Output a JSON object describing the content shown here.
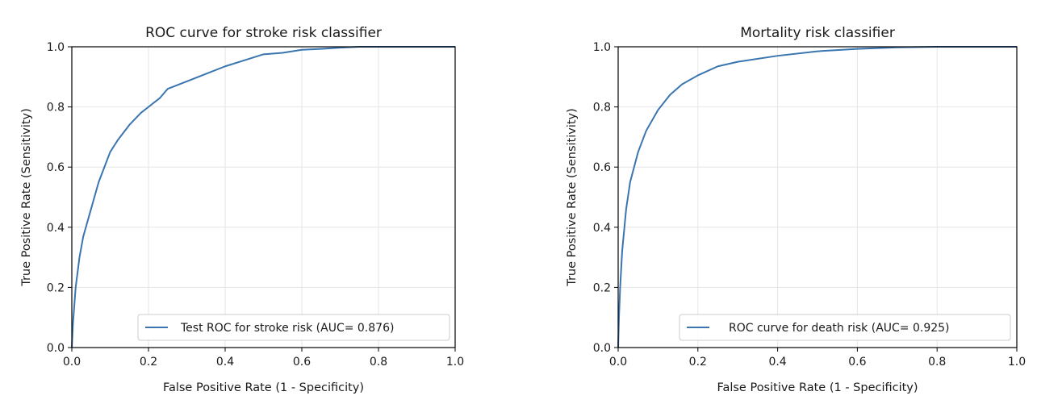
{
  "colors": {
    "line": "#3a75b0"
  },
  "chart_data": [
    {
      "type": "line",
      "title": "ROC curve for stroke risk classifier",
      "xlabel": "False Positive Rate (1 - Specificity)",
      "ylabel": "True Positive Rate (Sensitivity)",
      "xlim": [
        0.0,
        1.0
      ],
      "ylim": [
        0.0,
        1.0
      ],
      "xticks": [
        "0.0",
        "0.2",
        "0.4",
        "0.6",
        "0.8",
        "1.0"
      ],
      "yticks": [
        "0.0",
        "0.2",
        "0.4",
        "0.6",
        "0.8",
        "1.0"
      ],
      "grid": true,
      "legend_position": "lower-right",
      "series": [
        {
          "name": "Test ROC for stroke risk (AUC= 0.876)",
          "x": [
            0.0,
            0.003,
            0.01,
            0.02,
            0.03,
            0.05,
            0.07,
            0.1,
            0.12,
            0.15,
            0.18,
            0.2,
            0.23,
            0.25,
            0.3,
            0.35,
            0.4,
            0.45,
            0.5,
            0.55,
            0.6,
            0.65,
            0.7,
            0.75
          ],
          "y": [
            0.0,
            0.08,
            0.2,
            0.3,
            0.37,
            0.46,
            0.55,
            0.65,
            0.69,
            0.74,
            0.78,
            0.8,
            0.83,
            0.86,
            0.885,
            0.91,
            0.935,
            0.955,
            0.975,
            0.98,
            0.99,
            0.993,
            0.997,
            1.0
          ]
        }
      ]
    },
    {
      "type": "line",
      "title": "Mortality risk classifier",
      "xlabel": "False Positive Rate (1 - Specificity)",
      "ylabel": "True Positive Rate (Sensitivity)",
      "xlim": [
        0.0,
        1.0
      ],
      "ylim": [
        0.0,
        1.0
      ],
      "xticks": [
        "0.0",
        "0.2",
        "0.4",
        "0.6",
        "0.8",
        "1.0"
      ],
      "yticks": [
        "0.0",
        "0.2",
        "0.4",
        "0.6",
        "0.8",
        "1.0"
      ],
      "grid": true,
      "legend_position": "lower-right",
      "series": [
        {
          "name": "ROC curve for death risk (AUC= 0.925)",
          "x": [
            0.0,
            0.002,
            0.005,
            0.01,
            0.02,
            0.03,
            0.05,
            0.07,
            0.1,
            0.13,
            0.16,
            0.2,
            0.25,
            0.3,
            0.4,
            0.5,
            0.6,
            0.7,
            0.8
          ],
          "y": [
            0.0,
            0.1,
            0.2,
            0.32,
            0.46,
            0.55,
            0.65,
            0.72,
            0.79,
            0.84,
            0.875,
            0.905,
            0.935,
            0.95,
            0.97,
            0.985,
            0.993,
            0.998,
            1.0
          ]
        }
      ]
    }
  ]
}
